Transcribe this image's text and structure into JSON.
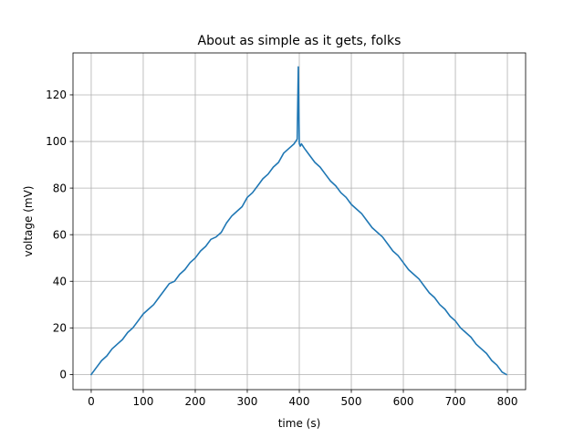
{
  "chart_data": {
    "type": "line",
    "title": "About as simple as it gets, folks",
    "xlabel": "time (s)",
    "ylabel": "voltage (mV)",
    "xlim": [
      -35,
      835
    ],
    "ylim": [
      -6.5,
      138
    ],
    "xticks": [
      0,
      100,
      200,
      300,
      400,
      500,
      600,
      700,
      800
    ],
    "yticks": [
      0,
      20,
      40,
      60,
      80,
      100,
      120
    ],
    "grid": true,
    "legend": "none",
    "line_color": "#1f77b4",
    "series": [
      {
        "x": [
          0,
          10,
          20,
          30,
          40,
          50,
          60,
          70,
          80,
          90,
          100,
          110,
          120,
          130,
          140,
          150,
          160,
          170,
          180,
          190,
          200,
          210,
          220,
          230,
          240,
          250,
          260,
          270,
          280,
          290,
          300,
          310,
          320,
          330,
          340,
          350,
          360,
          370,
          380,
          390,
          396,
          398,
          400,
          402,
          404,
          410,
          420,
          430,
          440,
          450,
          460,
          470,
          480,
          490,
          500,
          510,
          520,
          530,
          540,
          550,
          560,
          570,
          580,
          590,
          600,
          610,
          620,
          630,
          640,
          650,
          660,
          670,
          680,
          690,
          700,
          710,
          720,
          730,
          740,
          750,
          760,
          770,
          780,
          790,
          798
        ],
        "y": [
          0,
          3,
          6,
          8,
          11,
          13,
          15,
          18,
          20,
          23,
          26,
          28,
          30,
          33,
          36,
          39,
          40,
          43,
          45,
          48,
          50,
          53,
          55,
          58,
          59,
          61,
          65,
          68,
          70,
          72,
          76,
          78,
          81,
          84,
          86,
          89,
          91,
          95,
          97,
          99,
          101,
          132,
          99,
          98,
          99,
          97,
          94,
          91,
          89,
          86,
          83,
          81,
          78,
          76,
          73,
          71,
          69,
          66,
          63,
          61,
          59,
          56,
          53,
          51,
          48,
          45,
          43,
          41,
          38,
          35,
          33,
          30,
          28,
          25,
          23,
          20,
          18,
          16,
          13,
          11,
          9,
          6,
          4,
          1,
          0
        ]
      }
    ]
  }
}
